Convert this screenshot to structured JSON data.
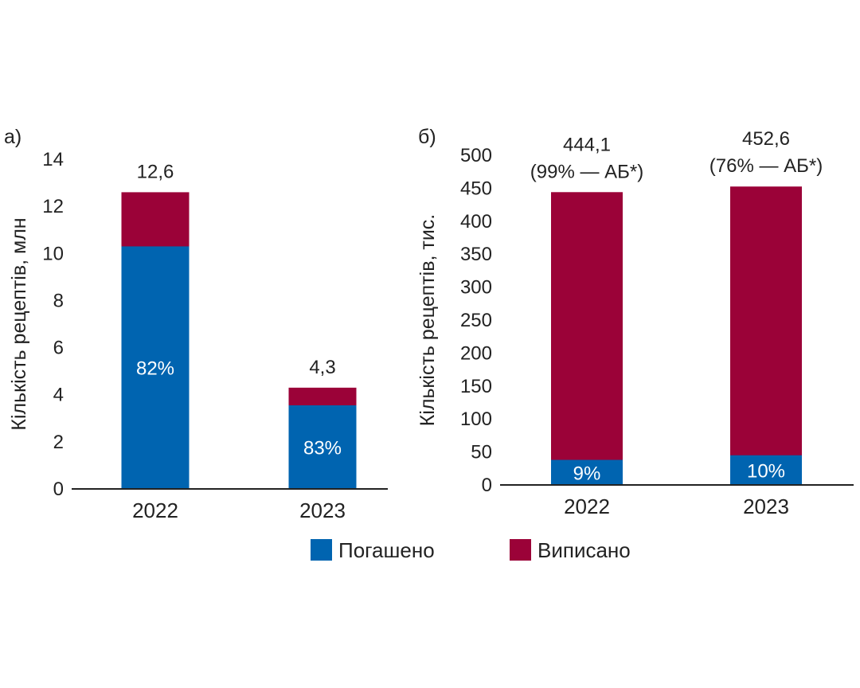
{
  "colors": {
    "redeemed": "#0064b0",
    "prescribed": "#9b0238"
  },
  "legend": [
    {
      "key": "redeemed",
      "label": "Погашено"
    },
    {
      "key": "prescribed",
      "label": "Виписано"
    }
  ],
  "chart_data": [
    {
      "type": "bar",
      "panel_label": "а)",
      "ylabel": "Кількість рецептів, млн",
      "ylim": [
        0,
        14
      ],
      "yticks": [
        0,
        2,
        4,
        6,
        8,
        10,
        12,
        14
      ],
      "categories": [
        "2022",
        "2023"
      ],
      "series": [
        {
          "name": "Погашено",
          "values": [
            10.3,
            3.55
          ]
        },
        {
          "name": "Виписано",
          "values": [
            12.6,
            4.3
          ]
        }
      ],
      "totals": [
        "12,6",
        "4,3"
      ],
      "total_notes": [
        "",
        ""
      ],
      "percent_labels": [
        "82%",
        "83%"
      ]
    },
    {
      "type": "bar",
      "panel_label": "б)",
      "ylabel": "Кількість рецептів, тис.",
      "ylim": [
        0,
        500
      ],
      "yticks": [
        0,
        50,
        100,
        150,
        200,
        250,
        300,
        350,
        400,
        450,
        500
      ],
      "categories": [
        "2022",
        "2023"
      ],
      "series": [
        {
          "name": "Погашено",
          "values": [
            38,
            45
          ]
        },
        {
          "name": "Виписано",
          "values": [
            444.1,
            452.6
          ]
        }
      ],
      "totals": [
        "444,1",
        "452,6"
      ],
      "total_notes": [
        "(99% — АБ*)",
        "(76% — АБ*)"
      ],
      "percent_labels": [
        "9%",
        "10%"
      ]
    }
  ]
}
